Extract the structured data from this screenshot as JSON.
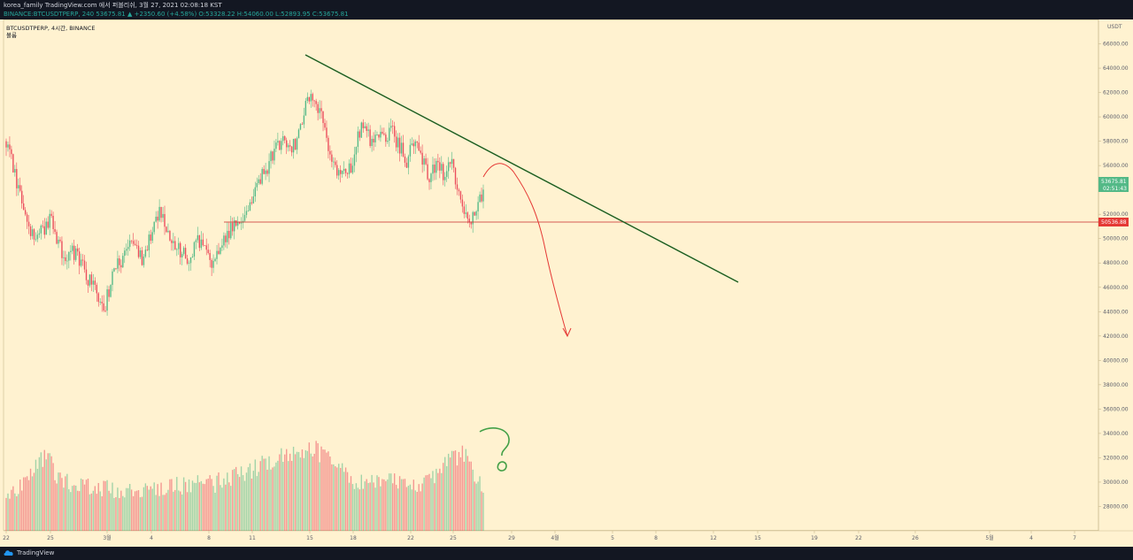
{
  "header": {
    "line1": "korea_family TradingView.com 에서 퍼블리쉬, 3월 27, 2021 02:08:18 KST",
    "symbol_line": "BINANCE:BTCUSDTPERP, 240 53675.81 ▲ +2350.60 (+4.58%)",
    "ohlc": "O:53328.22 H:54060.00 L:52893.95 C:53675.81"
  },
  "legend": {
    "title": "BTCUSDTPERP, 4시간, BINANCE",
    "volume_label": "볼륨"
  },
  "price_axis": {
    "unit": "USDT",
    "ticks": [
      "66000.00",
      "64000.00",
      "62000.00",
      "60000.00",
      "58000.00",
      "56000.00",
      "54000.00",
      "52000.00",
      "50000.00",
      "48000.00",
      "46000.00",
      "44000.00",
      "42000.00",
      "40000.00",
      "38000.00",
      "36000.00",
      "34000.00",
      "32000.00",
      "30000.00",
      "28000.00"
    ],
    "last_price": "53675.81",
    "countdown": "02:51:43",
    "horizontal_level": "50536.88"
  },
  "time_axis": {
    "ticks": [
      "22",
      "25",
      "3월",
      "4",
      "8",
      "11",
      "15",
      "18",
      "22",
      "25",
      "29",
      "4월",
      "5",
      "8",
      "12",
      "15",
      "19",
      "22",
      "26",
      "5월",
      "4",
      "7"
    ]
  },
  "footer": {
    "brand": "TradingView"
  },
  "colors": {
    "background": "#fff2d0",
    "up": "#53b987",
    "down": "#eb4d5c",
    "trendline": "#1b5e20",
    "horizontal": "#c62828",
    "arrow": "#e53935",
    "annotation": "#43a047"
  },
  "chart_data": {
    "type": "candlestick",
    "timeframe": "4H",
    "ylim": [
      26000,
      68000
    ],
    "anchors": [
      [
        0,
        58000
      ],
      [
        14,
        50000
      ],
      [
        26,
        51500
      ],
      [
        33,
        48500
      ],
      [
        40,
        49000
      ],
      [
        48,
        46500
      ],
      [
        56,
        44200
      ],
      [
        62,
        47500
      ],
      [
        72,
        49500
      ],
      [
        78,
        48500
      ],
      [
        88,
        52000
      ],
      [
        96,
        49500
      ],
      [
        104,
        48500
      ],
      [
        112,
        50000
      ],
      [
        118,
        48000
      ],
      [
        128,
        50500
      ],
      [
        136,
        51500
      ],
      [
        142,
        53500
      ],
      [
        150,
        56000
      ],
      [
        158,
        58000
      ],
      [
        166,
        57500
      ],
      [
        172,
        61000
      ],
      [
        178,
        61500
      ],
      [
        182,
        59500
      ],
      [
        186,
        56500
      ],
      [
        192,
        55000
      ],
      [
        198,
        56000
      ],
      [
        204,
        59500
      ],
      [
        210,
        58000
      ],
      [
        216,
        58500
      ],
      [
        222,
        58700
      ],
      [
        230,
        56500
      ],
      [
        236,
        58500
      ],
      [
        242,
        55000
      ],
      [
        248,
        56000
      ],
      [
        252,
        55200
      ],
      [
        256,
        56200
      ],
      [
        262,
        52200
      ],
      [
        268,
        51500
      ],
      [
        274,
        53700
      ]
    ],
    "volume_profile": [
      [
        0,
        27900
      ],
      [
        14,
        30500
      ],
      [
        24,
        32100
      ],
      [
        30,
        29800
      ],
      [
        60,
        29000
      ],
      [
        120,
        29600
      ],
      [
        175,
        32600
      ],
      [
        200,
        29800
      ],
      [
        240,
        29500
      ],
      [
        262,
        32200
      ],
      [
        274,
        28900
      ]
    ]
  }
}
